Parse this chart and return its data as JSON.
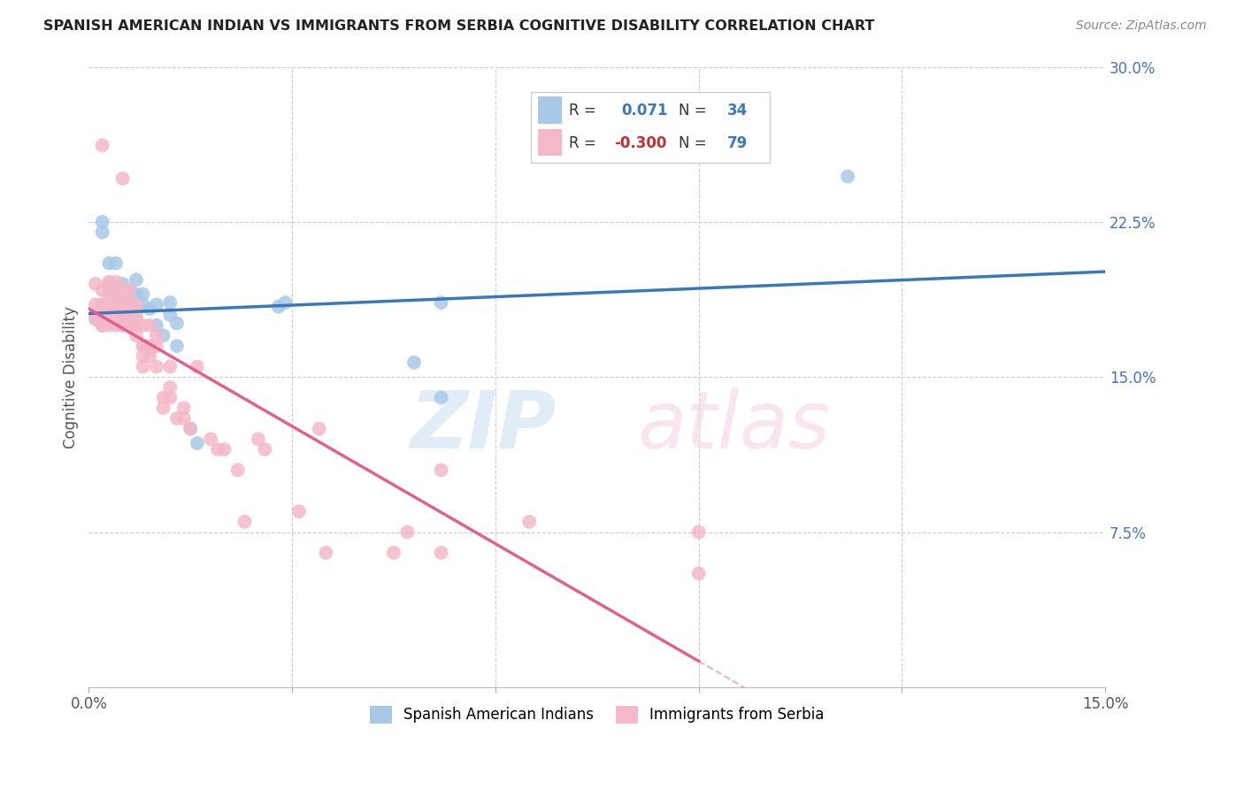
{
  "title": "SPANISH AMERICAN INDIAN VS IMMIGRANTS FROM SERBIA COGNITIVE DISABILITY CORRELATION CHART",
  "source": "Source: ZipAtlas.com",
  "ylabel": "Cognitive Disability",
  "xlim": [
    0.0,
    0.15
  ],
  "ylim": [
    0.0,
    0.3
  ],
  "blue_color": "#a8c8e8",
  "pink_color": "#f4b8c8",
  "blue_line_color": "#3a78b8",
  "pink_line_color": "#e06090",
  "blue_R": 0.071,
  "blue_N": 34,
  "pink_R": -0.3,
  "pink_N": 79,
  "legend_text_color": "#3a78b8",
  "legend_neg_color": "#c03030",
  "blue_scatter_x": [
    0.001,
    0.002,
    0.002,
    0.003,
    0.003,
    0.004,
    0.004,
    0.005,
    0.005,
    0.005,
    0.006,
    0.006,
    0.007,
    0.007,
    0.007,
    0.008,
    0.008,
    0.009,
    0.009,
    0.01,
    0.01,
    0.011,
    0.012,
    0.012,
    0.013,
    0.013,
    0.015,
    0.016,
    0.028,
    0.029,
    0.048,
    0.052,
    0.052,
    0.112
  ],
  "blue_scatter_y": [
    0.178,
    0.225,
    0.22,
    0.192,
    0.205,
    0.188,
    0.205,
    0.182,
    0.195,
    0.18,
    0.187,
    0.192,
    0.178,
    0.19,
    0.197,
    0.19,
    0.185,
    0.183,
    0.163,
    0.185,
    0.175,
    0.17,
    0.18,
    0.186,
    0.176,
    0.165,
    0.125,
    0.118,
    0.184,
    0.186,
    0.157,
    0.14,
    0.186,
    0.247
  ],
  "pink_scatter_x": [
    0.001,
    0.001,
    0.001,
    0.001,
    0.002,
    0.002,
    0.002,
    0.002,
    0.002,
    0.002,
    0.002,
    0.002,
    0.003,
    0.003,
    0.003,
    0.003,
    0.003,
    0.003,
    0.003,
    0.003,
    0.004,
    0.004,
    0.004,
    0.004,
    0.004,
    0.004,
    0.005,
    0.005,
    0.005,
    0.005,
    0.005,
    0.005,
    0.006,
    0.006,
    0.006,
    0.006,
    0.006,
    0.007,
    0.007,
    0.007,
    0.007,
    0.008,
    0.008,
    0.008,
    0.008,
    0.008,
    0.009,
    0.009,
    0.009,
    0.01,
    0.01,
    0.01,
    0.011,
    0.011,
    0.012,
    0.012,
    0.012,
    0.013,
    0.014,
    0.014,
    0.015,
    0.016,
    0.018,
    0.019,
    0.02,
    0.022,
    0.023,
    0.025,
    0.026,
    0.031,
    0.034,
    0.035,
    0.045,
    0.047,
    0.052,
    0.052,
    0.065,
    0.09,
    0.09
  ],
  "pink_scatter_y": [
    0.178,
    0.185,
    0.18,
    0.195,
    0.262,
    0.175,
    0.185,
    0.18,
    0.175,
    0.192,
    0.185,
    0.175,
    0.186,
    0.195,
    0.18,
    0.19,
    0.185,
    0.175,
    0.185,
    0.196,
    0.196,
    0.19,
    0.185,
    0.18,
    0.175,
    0.185,
    0.246,
    0.192,
    0.175,
    0.185,
    0.18,
    0.175,
    0.185,
    0.192,
    0.175,
    0.18,
    0.186,
    0.185,
    0.18,
    0.175,
    0.17,
    0.165,
    0.175,
    0.16,
    0.155,
    0.165,
    0.175,
    0.165,
    0.16,
    0.17,
    0.165,
    0.155,
    0.14,
    0.135,
    0.155,
    0.145,
    0.14,
    0.13,
    0.135,
    0.13,
    0.125,
    0.155,
    0.12,
    0.115,
    0.115,
    0.105,
    0.08,
    0.12,
    0.115,
    0.085,
    0.125,
    0.065,
    0.065,
    0.075,
    0.065,
    0.105,
    0.08,
    0.055,
    0.075
  ]
}
